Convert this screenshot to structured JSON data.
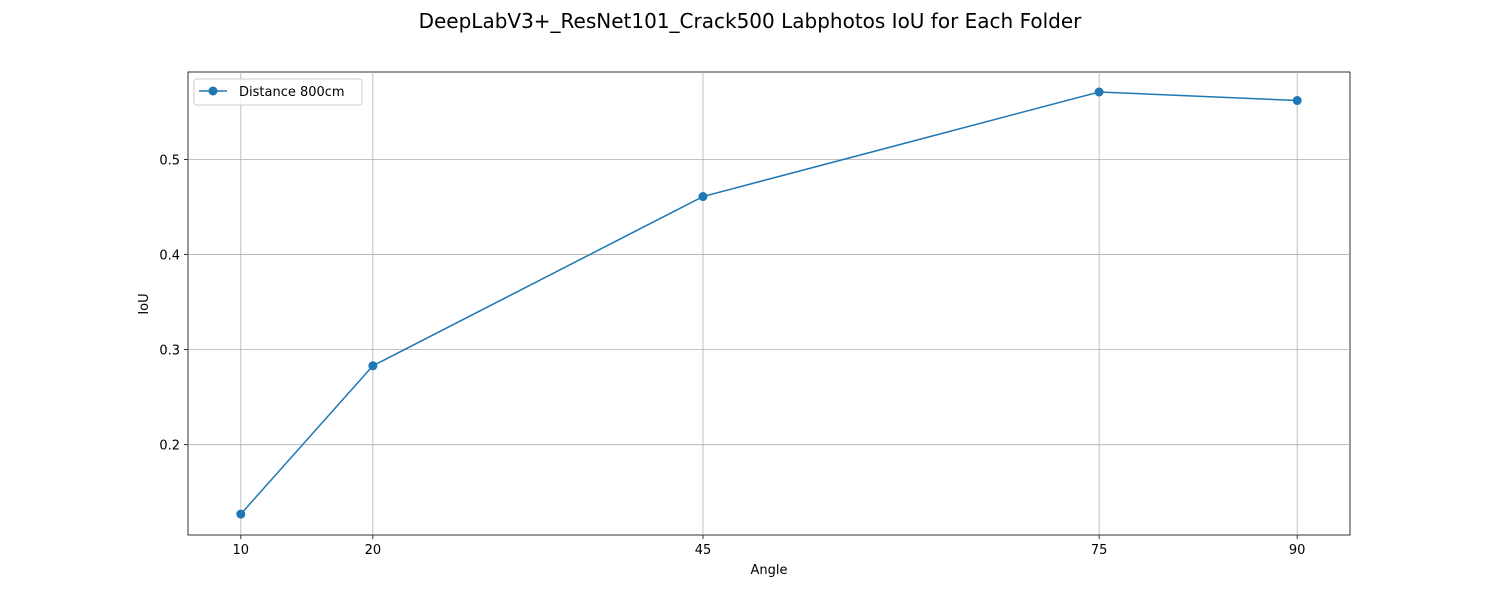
{
  "chart_data": {
    "type": "line",
    "title": "DeepLabV3+_ResNet101_Crack500 Labphotos IoU for Each Folder",
    "xlabel": "Angle",
    "ylabel": "IoU",
    "x": [
      10,
      20,
      45,
      75,
      90
    ],
    "x_ticks": [
      "10",
      "20",
      "45",
      "75",
      "90"
    ],
    "y_ticks": [
      0.2,
      0.3,
      0.4,
      0.5
    ],
    "y_tick_labels": [
      "0.2",
      "0.3",
      "0.4",
      "0.5"
    ],
    "xlim": [
      6,
      94
    ],
    "ylim": [
      0.105,
      0.592
    ],
    "grid": true,
    "legend_position": "upper-left",
    "series": [
      {
        "name": "Distance 800cm",
        "color": "#1f77b4",
        "marker": "circle",
        "values": [
          0.127,
          0.283,
          0.461,
          0.571,
          0.562
        ]
      }
    ]
  }
}
